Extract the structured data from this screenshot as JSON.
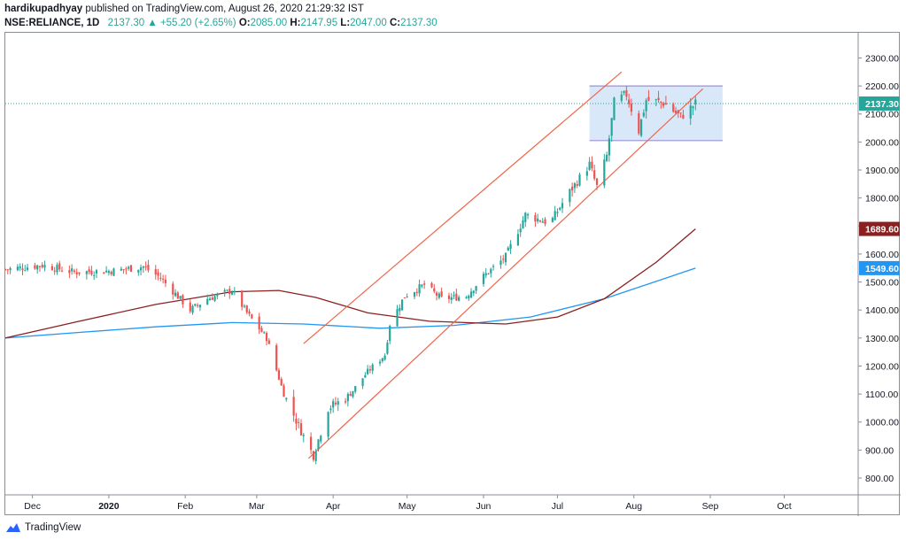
{
  "header": {
    "author": "hardikupadhyay",
    "published_text": " published on TradingView.com, August 26, 2020 21:29:32 IST",
    "symbol": "NSE:RELIANCE, 1D",
    "last": "2137.30",
    "change": "+55.20 (+2.65%)",
    "o_label": "O:",
    "o_value": "2085.00",
    "h_label": "H:",
    "h_value": "2147.95",
    "l_label": "L:",
    "l_value": "2047.00",
    "c_label": "C:",
    "c_value": "2137.30"
  },
  "footer": {
    "brand": "TradingView",
    "logo_icon": "tradingview-logo-icon"
  },
  "colors": {
    "up": "#26a69a",
    "down": "#ef5350",
    "channel": "#f0654a",
    "box_fill": "#cfe2f7",
    "box_stroke": "#9c8fd6",
    "sma_fast": "#2196f3",
    "sma_slow": "#8b2020",
    "last_line": "#26a69a"
  },
  "chart_data": {
    "type": "candlestick",
    "y_axis": {
      "range": [
        740,
        2390
      ],
      "ticks": [
        "2300.00",
        "2200.00",
        "2100.00",
        "2000.00",
        "1900.00",
        "1800.00",
        "1700.00",
        "1600.00",
        "1500.00",
        "1400.00",
        "1300.00",
        "1200.00",
        "1100.00",
        "1000.00",
        "900.00",
        "800.00"
      ]
    },
    "x_axis": {
      "start": "2019-11-20",
      "end": "2020-10-31",
      "labels": [
        {
          "date": "2019-12-01",
          "text": "Dec"
        },
        {
          "date": "2020-01-01",
          "text": "2020"
        },
        {
          "date": "2020-02-01",
          "text": "Feb"
        },
        {
          "date": "2020-03-01",
          "text": "Mar"
        },
        {
          "date": "2020-04-01",
          "text": "Apr"
        },
        {
          "date": "2020-05-01",
          "text": "May"
        },
        {
          "date": "2020-06-01",
          "text": "Jun"
        },
        {
          "date": "2020-07-01",
          "text": "Jul"
        },
        {
          "date": "2020-08-01",
          "text": "Aug"
        },
        {
          "date": "2020-09-01",
          "text": "Sep"
        },
        {
          "date": "2020-10-01",
          "text": "Oct"
        }
      ]
    },
    "price_labels": [
      {
        "value": 2137.3,
        "text": "2137.30",
        "color": "#26a69a"
      },
      {
        "value": 1689.6,
        "text": "1689.60",
        "color": "#8b2020"
      },
      {
        "value": 1549.6,
        "text": "1549.60",
        "color": "#2196f3"
      }
    ],
    "close_anchors": [
      [
        "2019-11-20",
        1545
      ],
      [
        "2019-12-05",
        1560
      ],
      [
        "2019-12-18",
        1535
      ],
      [
        "2020-01-03",
        1540
      ],
      [
        "2020-01-15",
        1555
      ],
      [
        "2020-01-22",
        1515
      ],
      [
        "2020-02-03",
        1400
      ],
      [
        "2020-02-10",
        1440
      ],
      [
        "2020-02-20",
        1470
      ],
      [
        "2020-02-26",
        1390
      ],
      [
        "2020-03-05",
        1300
      ],
      [
        "2020-03-12",
        1100
      ],
      [
        "2020-03-20",
        950
      ],
      [
        "2020-03-24",
        880
      ],
      [
        "2020-03-30",
        1050
      ],
      [
        "2020-04-07",
        1090
      ],
      [
        "2020-04-15",
        1180
      ],
      [
        "2020-04-22",
        1240
      ],
      [
        "2020-04-24",
        1350
      ],
      [
        "2020-04-30",
        1450
      ],
      [
        "2020-05-08",
        1490
      ],
      [
        "2020-05-15",
        1440
      ],
      [
        "2020-05-25",
        1450
      ],
      [
        "2020-06-01",
        1520
      ],
      [
        "2020-06-10",
        1590
      ],
      [
        "2020-06-18",
        1740
      ],
      [
        "2020-06-28",
        1710
      ],
      [
        "2020-07-05",
        1810
      ],
      [
        "2020-07-14",
        1920
      ],
      [
        "2020-07-17",
        1840
      ],
      [
        "2020-07-21",
        1950
      ],
      [
        "2020-07-24",
        2140
      ],
      [
        "2020-07-29",
        2170
      ],
      [
        "2020-08-03",
        2040
      ],
      [
        "2020-08-06",
        2150
      ],
      [
        "2020-08-13",
        2140
      ],
      [
        "2020-08-20",
        2090
      ],
      [
        "2020-08-26",
        2137.3
      ]
    ],
    "sma_fast_points": [
      [
        "2019-11-20",
        1300
      ],
      [
        "2019-12-20",
        1320
      ],
      [
        "2020-01-20",
        1340
      ],
      [
        "2020-02-20",
        1355
      ],
      [
        "2020-03-20",
        1350
      ],
      [
        "2020-04-20",
        1335
      ],
      [
        "2020-05-20",
        1345
      ],
      [
        "2020-06-20",
        1375
      ],
      [
        "2020-07-20",
        1440
      ],
      [
        "2020-08-26",
        1549.6
      ]
    ],
    "sma_slow_points": [
      [
        "2019-11-20",
        1300
      ],
      [
        "2019-12-20",
        1360
      ],
      [
        "2020-01-20",
        1420
      ],
      [
        "2020-02-20",
        1465
      ],
      [
        "2020-03-10",
        1470
      ],
      [
        "2020-03-25",
        1445
      ],
      [
        "2020-04-15",
        1390
      ],
      [
        "2020-05-10",
        1360
      ],
      [
        "2020-06-10",
        1350
      ],
      [
        "2020-07-01",
        1375
      ],
      [
        "2020-07-20",
        1440
      ],
      [
        "2020-08-10",
        1570
      ],
      [
        "2020-08-26",
        1689.6
      ]
    ],
    "channel_lines": [
      {
        "from": [
          "2020-03-22",
          870
        ],
        "to": [
          "2020-08-29",
          2190
        ]
      },
      {
        "from": [
          "2020-03-20",
          1280
        ],
        "to": [
          "2020-07-27",
          2250
        ]
      }
    ],
    "range_box": {
      "from": "2020-07-14",
      "to": "2020-09-06",
      "low": 2005,
      "high": 2200
    }
  }
}
